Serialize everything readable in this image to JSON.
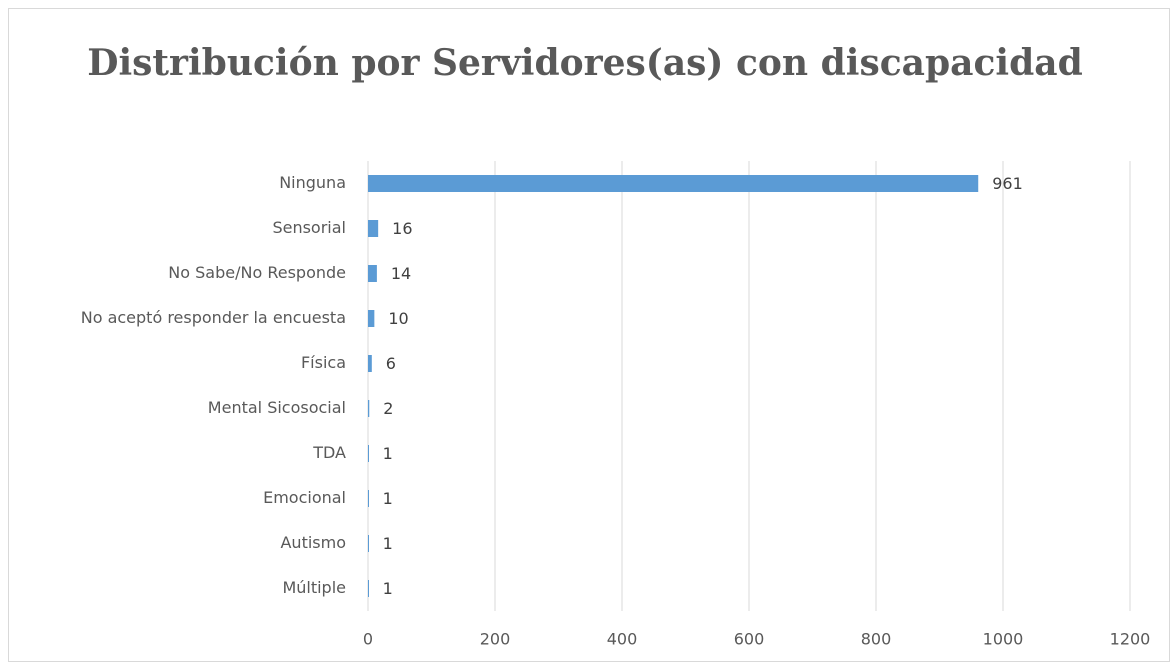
{
  "chart_data": {
    "type": "bar",
    "orientation": "horizontal",
    "title": "Distribución por Servidores(as) con discapacidad",
    "categories": [
      "Ninguna",
      "Sensorial",
      "No Sabe/No Responde",
      "No aceptó responder la encuesta",
      "Física",
      "Mental Sicosocial",
      "TDA",
      "Emocional",
      "Autismo",
      "Múltiple"
    ],
    "values": [
      961,
      16,
      14,
      10,
      6,
      2,
      1,
      1,
      1,
      1
    ],
    "color": "#5b9bd5",
    "xlim": [
      0,
      1200
    ],
    "xticks": [
      0,
      200,
      400,
      600,
      800,
      1000,
      1200
    ],
    "grid": true
  }
}
